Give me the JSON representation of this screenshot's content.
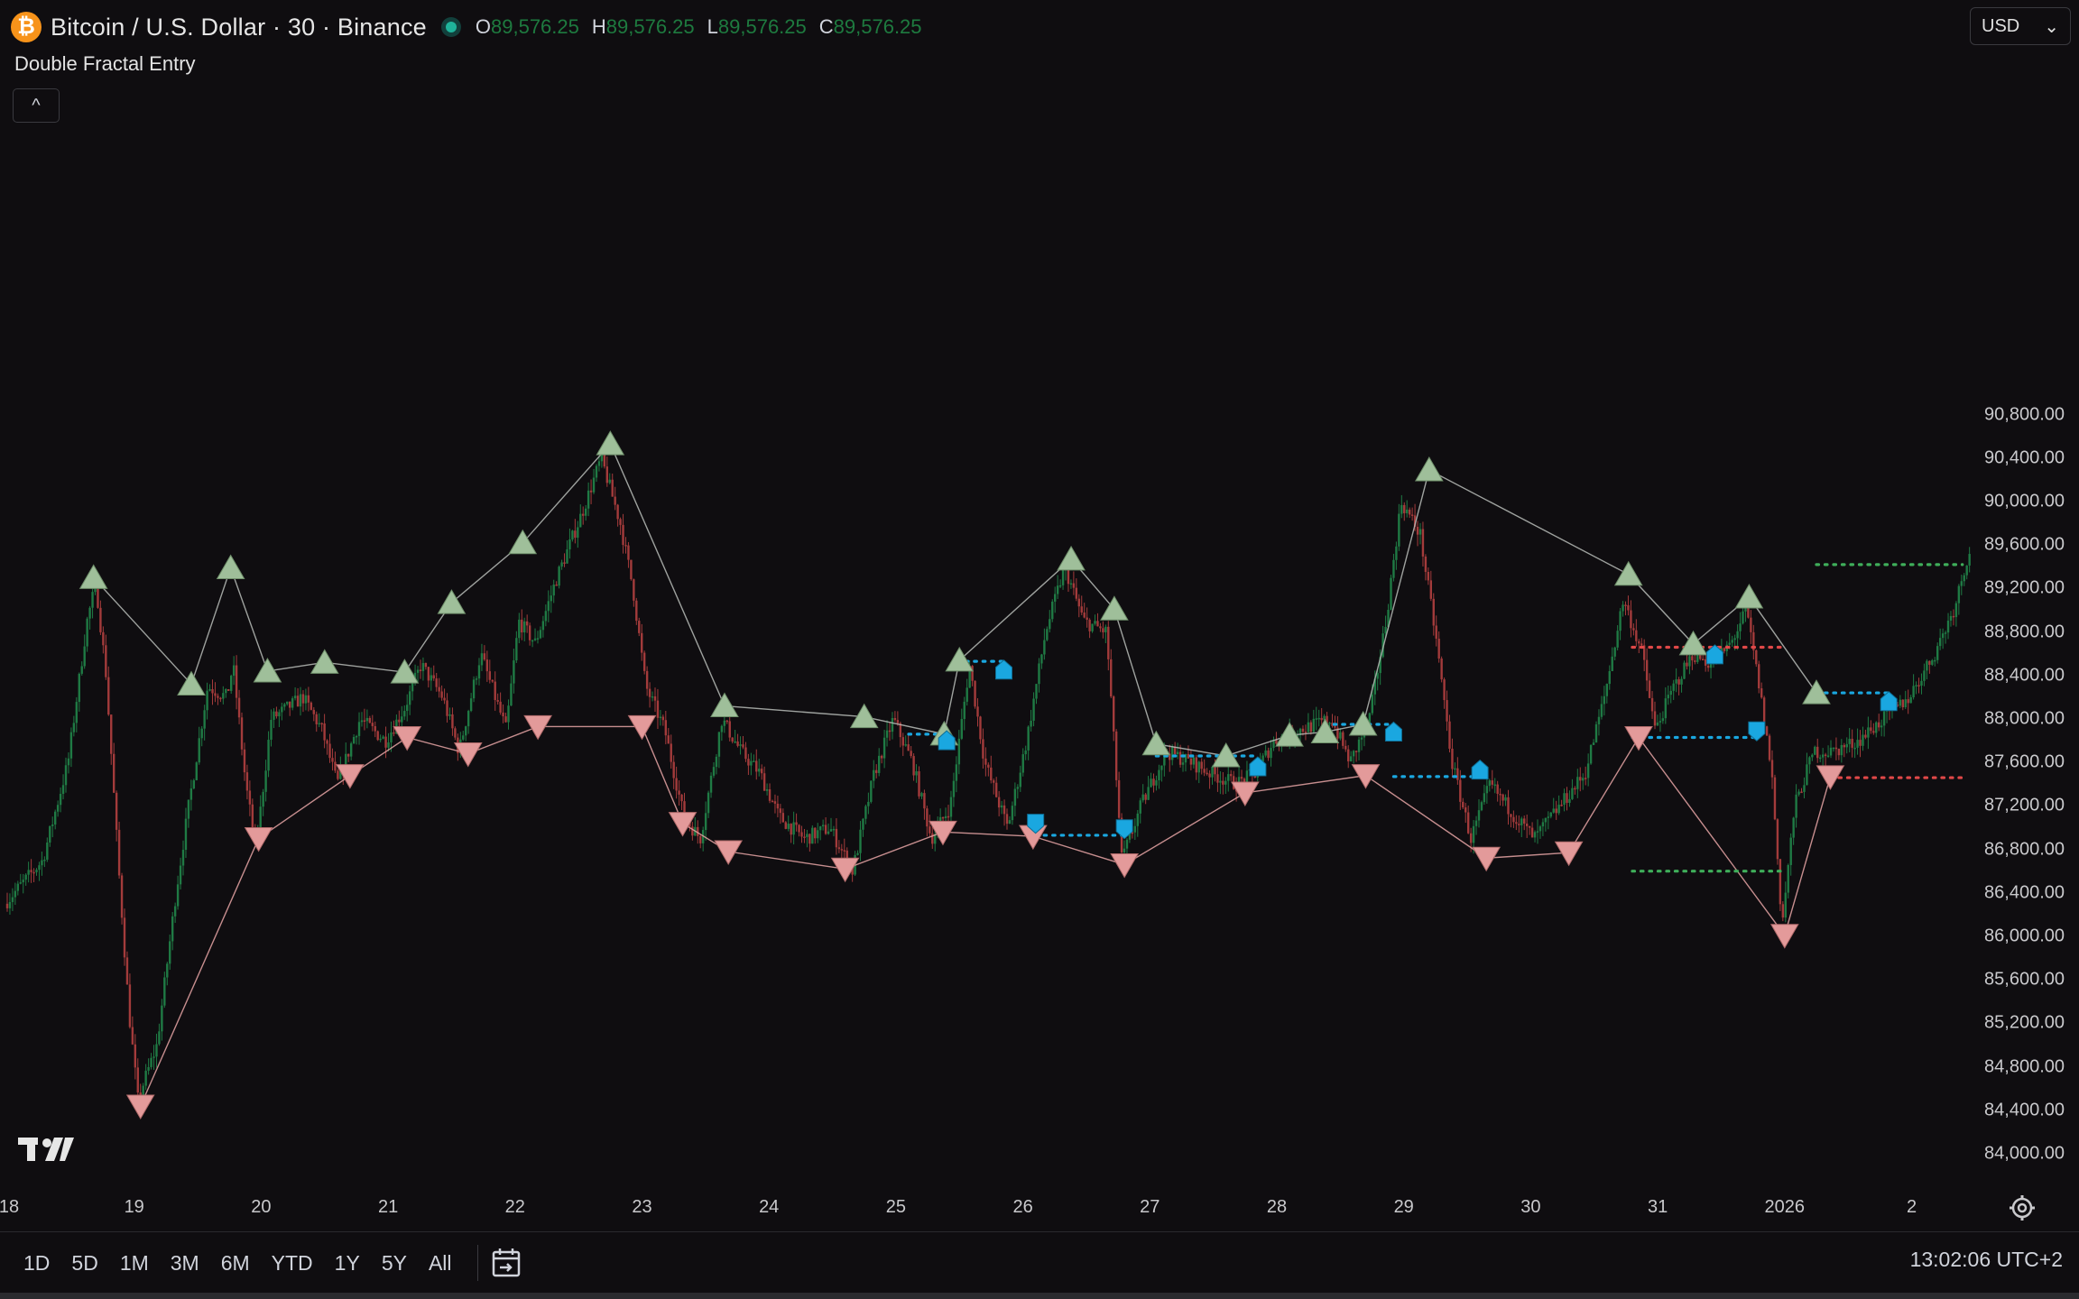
{
  "header": {
    "logo_glyph": "₿",
    "symbol": "Bitcoin / U.S. Dollar · 30 · Binance",
    "ohlc": [
      {
        "key": "O",
        "value": "89,576.25"
      },
      {
        "key": "H",
        "value": "89,576.25"
      },
      {
        "key": "L",
        "value": "89,576.25"
      },
      {
        "key": "C",
        "value": "89,576.25"
      }
    ]
  },
  "indicator": {
    "name": "Double Fractal Entry",
    "collapse_glyph": "^"
  },
  "currency": {
    "value": "USD",
    "arrow": "⌄"
  },
  "toolbar": {
    "ranges": [
      "1D",
      "5D",
      "1M",
      "3M",
      "6M",
      "YTD",
      "1Y",
      "5Y",
      "All"
    ],
    "clock": "13:02:06 UTC+2"
  },
  "colors": {
    "background": "#0f0d10",
    "up_candle": "#1f7a44",
    "down_candle": "#a33b3b",
    "high_fractal": "#9fbf9a",
    "low_fractal": "#e39a9a",
    "entry_marker": "#1aa7e0",
    "green_level": "#3fae5a",
    "red_level": "#e04848"
  },
  "chart_data": {
    "type": "candlestick",
    "title": "Bitcoin / U.S. Dollar · 30 · Binance",
    "ylim": [
      83800,
      90800
    ],
    "price_ticks": [
      "90,800.00",
      "90,400.00",
      "90,000.00",
      "89,600.00",
      "89,200.00",
      "88,800.00",
      "88,400.00",
      "88,000.00",
      "87,600.00",
      "87,200.00",
      "86,800.00",
      "86,400.00",
      "86,000.00",
      "85,600.00",
      "85,200.00",
      "84,800.00",
      "84,400.00",
      "84,000.00"
    ],
    "x_domain": [
      18,
      33.48
    ],
    "time_ticks": [
      {
        "x": 18,
        "label": "18"
      },
      {
        "x": 19,
        "label": "19"
      },
      {
        "x": 20,
        "label": "20"
      },
      {
        "x": 21,
        "label": "21"
      },
      {
        "x": 22,
        "label": "22"
      },
      {
        "x": 23,
        "label": "23"
      },
      {
        "x": 24,
        "label": "24"
      },
      {
        "x": 25,
        "label": "25"
      },
      {
        "x": 26,
        "label": "26"
      },
      {
        "x": 27,
        "label": "27"
      },
      {
        "x": 28,
        "label": "28"
      },
      {
        "x": 29,
        "label": "29"
      },
      {
        "x": 30,
        "label": "30"
      },
      {
        "x": 31,
        "label": "31"
      },
      {
        "x": 32,
        "label": "2026"
      },
      {
        "x": 33,
        "label": "2"
      }
    ],
    "price_path": [
      [
        18.0,
        86300
      ],
      [
        18.3,
        86700
      ],
      [
        18.5,
        87600
      ],
      [
        18.65,
        88900
      ],
      [
        18.72,
        89250
      ],
      [
        18.8,
        88400
      ],
      [
        18.9,
        86600
      ],
      [
        18.98,
        85300
      ],
      [
        19.05,
        84500
      ],
      [
        19.2,
        85000
      ],
      [
        19.35,
        86400
      ],
      [
        19.45,
        87200
      ],
      [
        19.6,
        88300
      ],
      [
        19.75,
        88200
      ],
      [
        19.8,
        88500
      ],
      [
        19.9,
        87400
      ],
      [
        19.98,
        86800
      ],
      [
        20.1,
        88000
      ],
      [
        20.35,
        88200
      ],
      [
        20.5,
        87900
      ],
      [
        20.62,
        87400
      ],
      [
        20.8,
        88000
      ],
      [
        21.0,
        87800
      ],
      [
        21.15,
        88100
      ],
      [
        21.28,
        88500
      ],
      [
        21.45,
        88200
      ],
      [
        21.58,
        87700
      ],
      [
        21.75,
        88600
      ],
      [
        21.95,
        87900
      ],
      [
        22.05,
        88900
      ],
      [
        22.18,
        88700
      ],
      [
        22.35,
        89300
      ],
      [
        22.55,
        89900
      ],
      [
        22.7,
        90400
      ],
      [
        22.85,
        89800
      ],
      [
        22.95,
        89200
      ],
      [
        23.05,
        88300
      ],
      [
        23.2,
        87900
      ],
      [
        23.35,
        87100
      ],
      [
        23.48,
        86900
      ],
      [
        23.65,
        88000
      ],
      [
        23.8,
        87700
      ],
      [
        23.95,
        87500
      ],
      [
        24.1,
        87100
      ],
      [
        24.3,
        86900
      ],
      [
        24.5,
        87000
      ],
      [
        24.68,
        86600
      ],
      [
        24.85,
        87500
      ],
      [
        25.0,
        88000
      ],
      [
        25.15,
        87600
      ],
      [
        25.3,
        86900
      ],
      [
        25.45,
        87200
      ],
      [
        25.6,
        88500
      ],
      [
        25.72,
        87600
      ],
      [
        25.9,
        87000
      ],
      [
        26.05,
        87800
      ],
      [
        26.2,
        88800
      ],
      [
        26.35,
        89400
      ],
      [
        26.5,
        88900
      ],
      [
        26.68,
        88800
      ],
      [
        26.8,
        86700
      ],
      [
        26.95,
        87200
      ],
      [
        27.15,
        87700
      ],
      [
        27.35,
        87600
      ],
      [
        27.5,
        87500
      ],
      [
        27.7,
        87400
      ],
      [
        27.85,
        87500
      ],
      [
        28.0,
        87800
      ],
      [
        28.2,
        87900
      ],
      [
        28.45,
        88000
      ],
      [
        28.6,
        87600
      ],
      [
        28.75,
        88000
      ],
      [
        28.88,
        88900
      ],
      [
        29.0,
        90000
      ],
      [
        29.15,
        89700
      ],
      [
        29.28,
        88700
      ],
      [
        29.4,
        87600
      ],
      [
        29.55,
        86900
      ],
      [
        29.7,
        87400
      ],
      [
        29.9,
        87100
      ],
      [
        30.05,
        86900
      ],
      [
        30.25,
        87200
      ],
      [
        30.45,
        87500
      ],
      [
        30.6,
        88200
      ],
      [
        30.75,
        89100
      ],
      [
        30.9,
        88600
      ],
      [
        31.0,
        87900
      ],
      [
        31.15,
        88300
      ],
      [
        31.3,
        88600
      ],
      [
        31.45,
        88500
      ],
      [
        31.6,
        88700
      ],
      [
        31.72,
        89000
      ],
      [
        31.82,
        88300
      ],
      [
        31.92,
        87500
      ],
      [
        32.0,
        86100
      ],
      [
        32.1,
        87200
      ],
      [
        32.25,
        87700
      ],
      [
        32.4,
        87700
      ],
      [
        32.6,
        87800
      ],
      [
        32.8,
        88000
      ],
      [
        33.0,
        88200
      ],
      [
        33.2,
        88600
      ],
      [
        33.35,
        89000
      ],
      [
        33.48,
        89576
      ]
    ],
    "high_fractals": [
      [
        18.68,
        89300
      ],
      [
        19.45,
        88320
      ],
      [
        19.76,
        89390
      ],
      [
        20.05,
        88440
      ],
      [
        20.5,
        88520
      ],
      [
        21.13,
        88430
      ],
      [
        21.5,
        89070
      ],
      [
        22.06,
        89620
      ],
      [
        22.75,
        90530
      ],
      [
        23.65,
        88120
      ],
      [
        24.75,
        88020
      ],
      [
        25.38,
        87860
      ],
      [
        25.5,
        88540
      ],
      [
        26.38,
        89470
      ],
      [
        26.72,
        89010
      ],
      [
        27.05,
        87770
      ],
      [
        27.6,
        87660
      ],
      [
        28.1,
        87850
      ],
      [
        28.38,
        87880
      ],
      [
        28.68,
        87950
      ],
      [
        29.2,
        90290
      ],
      [
        30.77,
        89330
      ],
      [
        31.28,
        88690
      ],
      [
        31.72,
        89120
      ],
      [
        32.25,
        88240
      ]
    ],
    "low_fractals": [
      [
        19.05,
        84440
      ],
      [
        19.98,
        86900
      ],
      [
        20.7,
        87480
      ],
      [
        21.15,
        87830
      ],
      [
        21.63,
        87680
      ],
      [
        22.18,
        87930
      ],
      [
        23.0,
        87930
      ],
      [
        23.32,
        87040
      ],
      [
        23.68,
        86780
      ],
      [
        24.6,
        86620
      ],
      [
        25.37,
        86960
      ],
      [
        26.08,
        86920
      ],
      [
        26.8,
        86660
      ],
      [
        27.75,
        87320
      ],
      [
        28.7,
        87480
      ],
      [
        29.65,
        86720
      ],
      [
        30.3,
        86770
      ],
      [
        30.85,
        87830
      ],
      [
        32.0,
        86010
      ],
      [
        32.36,
        87470
      ]
    ],
    "entry_markers": [
      {
        "x": 25.4,
        "y": 87800,
        "dir": "up"
      },
      {
        "x": 25.85,
        "y": 88450,
        "dir": "up"
      },
      {
        "x": 27.85,
        "y": 87560,
        "dir": "up"
      },
      {
        "x": 28.92,
        "y": 87880,
        "dir": "up"
      },
      {
        "x": 29.6,
        "y": 87530,
        "dir": "up"
      },
      {
        "x": 31.45,
        "y": 88590,
        "dir": "up"
      },
      {
        "x": 32.82,
        "y": 88160,
        "dir": "up"
      },
      {
        "x": 26.1,
        "y": 87040,
        "dir": "down"
      },
      {
        "x": 26.8,
        "y": 86990,
        "dir": "down"
      },
      {
        "x": 31.78,
        "y": 87890,
        "dir": "down"
      }
    ],
    "cyan_levels": [
      {
        "x1": 25.55,
        "x2": 25.85,
        "y": 88530
      },
      {
        "x1": 25.1,
        "x2": 25.4,
        "y": 87860
      },
      {
        "x1": 26.1,
        "x2": 26.8,
        "y": 86930
      },
      {
        "x1": 27.05,
        "x2": 27.85,
        "y": 87660
      },
      {
        "x1": 28.45,
        "x2": 28.92,
        "y": 87950
      },
      {
        "x1": 28.92,
        "x2": 29.6,
        "y": 87470
      },
      {
        "x1": 30.8,
        "x2": 31.78,
        "y": 87830
      },
      {
        "x1": 32.25,
        "x2": 32.82,
        "y": 88240
      }
    ],
    "green_levels": [
      {
        "x1": 30.8,
        "x2": 32.0,
        "y": 86600
      },
      {
        "x1": 32.25,
        "x2": 33.4,
        "y": 89420
      }
    ],
    "red_levels": [
      {
        "x1": 30.8,
        "x2": 32.0,
        "y": 88660
      },
      {
        "x1": 32.36,
        "x2": 33.4,
        "y": 87460
      }
    ]
  }
}
